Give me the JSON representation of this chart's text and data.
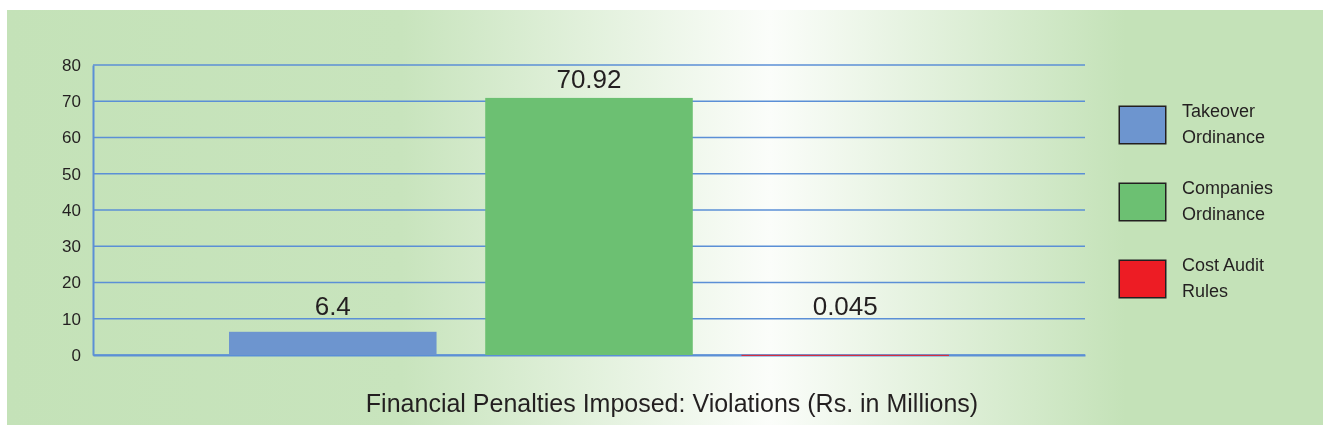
{
  "chart_data": {
    "type": "bar",
    "title": "Financial Penalties Imposed: Violations (Rs. in Millions)",
    "categories": [
      null
    ],
    "series": [
      {
        "name": "Takeover Ordinance",
        "color": "#6d95cf",
        "values": [
          6.4
        ]
      },
      {
        "name": "Companies Ordinance",
        "color": "#6cc072",
        "values": [
          70.92
        ]
      },
      {
        "name": "Cost Audit Rules",
        "color": "#ed1c24",
        "values": [
          0.045
        ]
      }
    ],
    "ylim": [
      0,
      80
    ],
    "yticks": [
      0,
      10,
      20,
      30,
      40,
      50,
      60,
      70,
      80
    ],
    "grid": "y",
    "legend": "right",
    "data_labels": true
  }
}
